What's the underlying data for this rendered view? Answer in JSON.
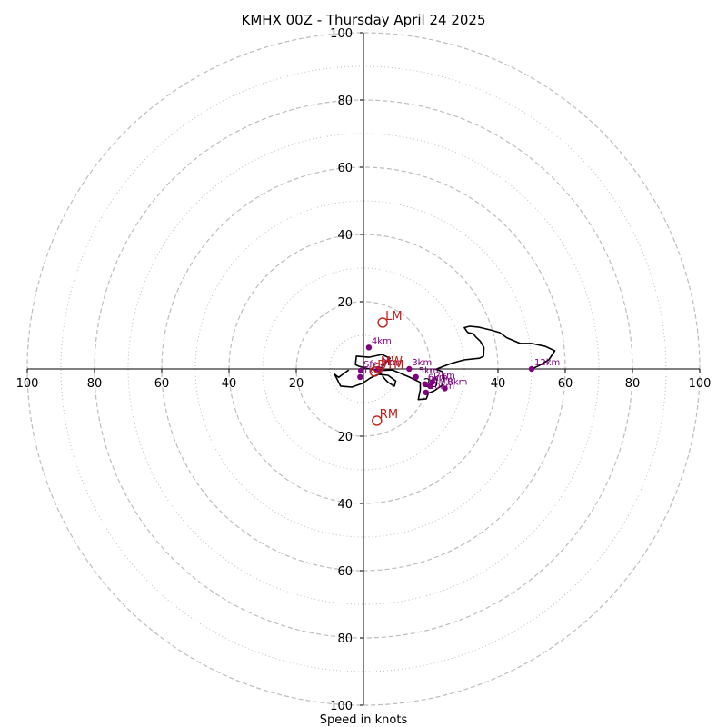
{
  "chart_data": {
    "type": "scatter",
    "title": "KMHX 00Z - Thursday April 24 2025",
    "xlabel": "Speed in knots",
    "ylabel": "",
    "xlim": [
      -100,
      100
    ],
    "ylim": [
      -100,
      100
    ],
    "ring_major": [
      20,
      40,
      60,
      80,
      100
    ],
    "ring_minor": [
      10,
      30,
      50,
      70,
      90
    ],
    "x_ticks": [
      {
        "value": -100,
        "label": "100"
      },
      {
        "value": -80,
        "label": "80"
      },
      {
        "value": -60,
        "label": "60"
      },
      {
        "value": -40,
        "label": "40"
      },
      {
        "value": -20,
        "label": "20"
      },
      {
        "value": 20,
        "label": "20"
      },
      {
        "value": 40,
        "label": "40"
      },
      {
        "value": 60,
        "label": "60"
      },
      {
        "value": 80,
        "label": "80"
      },
      {
        "value": 100,
        "label": "100"
      }
    ],
    "y_ticks": [
      {
        "value": 100,
        "label": "100"
      },
      {
        "value": 80,
        "label": "80"
      },
      {
        "value": 60,
        "label": "60"
      },
      {
        "value": 40,
        "label": "40"
      },
      {
        "value": 20,
        "label": "20"
      },
      {
        "value": -20,
        "label": "20"
      },
      {
        "value": -40,
        "label": "40"
      },
      {
        "value": -60,
        "label": "60"
      },
      {
        "value": -80,
        "label": "80"
      },
      {
        "value": -100,
        "label": "100"
      }
    ],
    "hodograph_trace": [
      [
        -4.4,
        -0.3
      ],
      [
        -5.6,
        -1.2
      ],
      [
        -7.4,
        -2.5
      ],
      [
        -8.6,
        -1.6
      ],
      [
        -6.8,
        -5.1
      ],
      [
        -3.5,
        -5.4
      ],
      [
        -0.3,
        -4.3
      ],
      [
        2.0,
        -2.7
      ],
      [
        4.5,
        -1.6
      ],
      [
        7.3,
        -1.9
      ],
      [
        9.6,
        -3.6
      ],
      [
        9.2,
        -5.1
      ],
      [
        7.3,
        -4.0
      ],
      [
        6.1,
        -2.7
      ],
      [
        4.5,
        -0.5
      ],
      [
        7.9,
        3.2
      ],
      [
        5.5,
        4.3
      ],
      [
        1.6,
        3.5
      ],
      [
        -2.1,
        3.8
      ],
      [
        -2.4,
        1.3
      ],
      [
        -1.4,
        0.8
      ],
      [
        3.9,
        -0.5
      ],
      [
        8.6,
        -0.3
      ],
      [
        13.6,
        -2.4
      ],
      [
        16.9,
        -4.0
      ],
      [
        16.9,
        -6.2
      ],
      [
        16.3,
        -9.1
      ],
      [
        18.7,
        -8.9
      ],
      [
        19.3,
        -7.2
      ],
      [
        21.0,
        -6.5
      ],
      [
        23.5,
        -4.8
      ],
      [
        24.0,
        -2.4
      ],
      [
        23.5,
        -0.8
      ],
      [
        21.5,
        -0.1
      ],
      [
        25.9,
        1.6
      ],
      [
        29.9,
        2.7
      ],
      [
        34.5,
        3.2
      ],
      [
        35.7,
        3.8
      ],
      [
        35.8,
        6.4
      ],
      [
        34.7,
        8.3
      ],
      [
        33.5,
        9.4
      ],
      [
        32.6,
        10.5
      ],
      [
        31.1,
        10.8
      ],
      [
        30.8,
        11.1
      ],
      [
        30.0,
        12.3
      ],
      [
        31.6,
        12.7
      ],
      [
        34.4,
        12.4
      ],
      [
        38.1,
        11.5
      ],
      [
        40.5,
        10.8
      ],
      [
        42.6,
        9.3
      ],
      [
        46.6,
        7.6
      ],
      [
        50.0,
        7.6
      ],
      [
        54.1,
        6.7
      ],
      [
        56.9,
        5.4
      ],
      [
        55.1,
        2.7
      ],
      [
        52.0,
        0.9
      ],
      [
        50.0,
        0.0
      ]
    ],
    "height_points": [
      {
        "label": "Sfc",
        "x": -0.8,
        "y": -0.5
      },
      {
        "label": "1km",
        "x": -1.0,
        "y": -2.4
      },
      {
        "label": "2km",
        "x": 4.5,
        "y": 0.0
      },
      {
        "label": "3km",
        "x": 13.6,
        "y": 0.0
      },
      {
        "label": "4km",
        "x": 1.6,
        "y": 6.4
      },
      {
        "label": "5km",
        "x": 15.6,
        "y": -2.4
      },
      {
        "label": "6km",
        "x": 18.3,
        "y": -4.5
      },
      {
        "label": "7km",
        "x": 20.5,
        "y": -3.9
      },
      {
        "label": "8km",
        "x": 24.2,
        "y": -5.8
      },
      {
        "label": "9km",
        "x": 19.8,
        "y": -5.1
      },
      {
        "label": "10km",
        "x": 18.6,
        "y": -7.0
      },
      {
        "label": "12km",
        "x": 50.0,
        "y": 0.0
      }
    ],
    "storm_motions": [
      {
        "label": "LM",
        "x": 5.7,
        "y": 13.8
      },
      {
        "label": "MW",
        "x": 4.3,
        "y": 0.3
      },
      {
        "label": "RM",
        "x": 4.0,
        "y": -15.4
      },
      {
        "label": "DTM",
        "x": 3.3,
        "y": -0.8
      }
    ],
    "colors": {
      "trace": "#000000",
      "height_points": "#800080",
      "storm_motion": "#c0201c",
      "grid": "#bdbdbd",
      "axis": "#000000"
    },
    "grid": true
  }
}
